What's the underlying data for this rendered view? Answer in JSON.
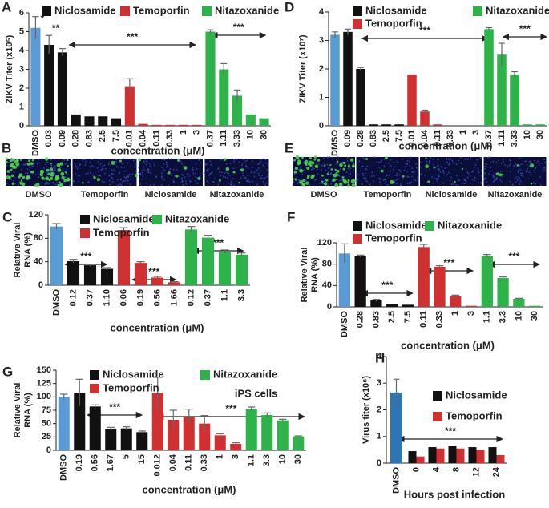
{
  "chart_data": [
    {
      "type": "bar",
      "letter": "A",
      "ylabel": "ZIKV Titer (x10⁵)",
      "xlabel": "concentration (μM)",
      "categories": [
        "DMSO",
        "0.03",
        "0.09",
        "0.28",
        "0.83",
        "2.5",
        "7.5",
        "0.01",
        "0.04",
        "0.11",
        "0.33",
        "1",
        "3",
        "0.37",
        "1.11",
        "3.33",
        "10",
        "30"
      ],
      "values": [
        5.2,
        4.3,
        3.9,
        0.6,
        0.5,
        0.5,
        0.4,
        2.1,
        0.1,
        0.05,
        0.05,
        0.05,
        0.05,
        5.0,
        3.0,
        1.6,
        0.6,
        0.4
      ],
      "errors": [
        0.6,
        0.5,
        0.2,
        null,
        null,
        null,
        null,
        0.4,
        null,
        null,
        null,
        null,
        null,
        0.1,
        0.3,
        0.3,
        null,
        null
      ],
      "bar_colors": [
        "#5b9bd5",
        "#111111",
        "#111111",
        "#111111",
        "#111111",
        "#111111",
        "#111111",
        "#d03030",
        "#d03030",
        "#d03030",
        "#d03030",
        "#d03030",
        "#d03030",
        "#2db34a",
        "#2db34a",
        "#2db34a",
        "#2db34a",
        "#2db34a"
      ],
      "legend": [
        {
          "name": "Niclosamide",
          "color": "#111111"
        },
        {
          "name": "Temoporfin",
          "color": "#d03030"
        },
        {
          "name": "Nitazoxanide",
          "color": "#2db34a"
        }
      ],
      "annotations": [
        "*",
        "**",
        "***",
        "***"
      ],
      "ylim": [
        0,
        6
      ],
      "yticks": [
        0,
        1,
        2,
        3,
        4,
        5,
        6
      ]
    },
    {
      "type": "bar",
      "letter": "D",
      "ylabel": "ZIKV Titer (x10⁷)",
      "xlabel": "concentration (μM)",
      "categories": [
        "DMSO",
        "0.09",
        "0.28",
        "0.83",
        "2.5",
        "7.5",
        "0.01",
        "0.04",
        "0.11",
        "0.33",
        "1",
        "3",
        "0.37",
        "1.11",
        "3.33",
        "10",
        "30"
      ],
      "values": [
        3.2,
        3.3,
        2.0,
        0.05,
        0.05,
        0.05,
        1.8,
        0.5,
        0.05,
        0,
        0,
        0,
        3.4,
        2.5,
        1.8,
        0.05,
        0.05
      ],
      "errors": [
        0.1,
        0.1,
        0.05,
        null,
        null,
        null,
        null,
        0.05,
        null,
        null,
        null,
        null,
        0.05,
        0.4,
        0.1,
        null,
        null
      ],
      "bar_colors": [
        "#5b9bd5",
        "#111111",
        "#111111",
        "#111111",
        "#111111",
        "#111111",
        "#d03030",
        "#d03030",
        "#d03030",
        "#d03030",
        "#d03030",
        "#d03030",
        "#2db34a",
        "#2db34a",
        "#2db34a",
        "#2db34a",
        "#2db34a"
      ],
      "legend": [
        {
          "name": "Niclosamide",
          "color": "#111111"
        },
        {
          "name": "Nitazoxanide",
          "color": "#2db34a"
        },
        {
          "name": "Temoporfin",
          "color": "#d03030"
        }
      ],
      "annotations": [
        "***",
        "***"
      ],
      "ylim": [
        0,
        4
      ],
      "yticks": [
        0,
        1,
        2,
        3,
        4
      ]
    },
    {
      "type": "bar",
      "letter": "C",
      "ylabel": [
        "Relative Viral",
        "RNA (%)"
      ],
      "xlabel": "concentration (μM)",
      "categories": [
        "DMSO",
        "0.12",
        "0.37",
        "1.10",
        "0.06",
        "0.19",
        "0.56",
        "1.66",
        "0.12",
        "0.37",
        "1.1",
        "3.3"
      ],
      "values": [
        100,
        41,
        34,
        28,
        94,
        38,
        13,
        5,
        95,
        81,
        57,
        52
      ],
      "errors": [
        5,
        3,
        2,
        2,
        4,
        2,
        2,
        1,
        5,
        4,
        3,
        3
      ],
      "bar_colors": [
        "#5b9bd5",
        "#111111",
        "#111111",
        "#111111",
        "#d03030",
        "#d03030",
        "#d03030",
        "#d03030",
        "#2db34a",
        "#2db34a",
        "#2db34a",
        "#2db34a"
      ],
      "legend": [
        {
          "name": "Niclosamide",
          "color": "#111111"
        },
        {
          "name": "Nitazoxanide",
          "color": "#2db34a"
        },
        {
          "name": "Temoporfin",
          "color": "#d03030"
        }
      ],
      "annotations": [
        "***",
        "***",
        "***"
      ],
      "ylim": [
        0,
        120
      ],
      "yticks": [
        0,
        40,
        80,
        120
      ]
    },
    {
      "type": "bar",
      "letter": "F",
      "ylabel": [
        "Relative Viral",
        "RNA (%)"
      ],
      "xlabel": "concentration (μM)",
      "categories": [
        "DMSO",
        "0.28",
        "0.83",
        "2.5",
        "7.5",
        "0.11",
        "0.33",
        "1",
        "3",
        "1.1",
        "3.3",
        "10",
        "30"
      ],
      "values": [
        100,
        95,
        12,
        5,
        4,
        112,
        75,
        20,
        2,
        95,
        54,
        15,
        2
      ],
      "errors": [
        18,
        2,
        2,
        null,
        null,
        5,
        2,
        2,
        null,
        3,
        2,
        1,
        null
      ],
      "bar_colors": [
        "#5b9bd5",
        "#111111",
        "#111111",
        "#111111",
        "#111111",
        "#d03030",
        "#d03030",
        "#d03030",
        "#d03030",
        "#2db34a",
        "#2db34a",
        "#2db34a",
        "#2db34a"
      ],
      "legend": [
        {
          "name": "Niclosamide",
          "color": "#111111"
        },
        {
          "name": "Nitazoxanide",
          "color": "#2db34a"
        },
        {
          "name": "Temoporfin",
          "color": "#d03030"
        }
      ],
      "annotations": [
        "***",
        "***",
        "***"
      ],
      "ylim": [
        0,
        120
      ],
      "yticks": [
        0,
        40,
        80,
        120
      ]
    },
    {
      "type": "bar",
      "letter": "G",
      "ylabel": [
        "Relative Viral",
        "RNA (%)"
      ],
      "xlabel": "concentration (μM)",
      "categories": [
        "DMSO",
        "0.19",
        "0.56",
        "1.67",
        "5",
        "15",
        "0.012",
        "0.04",
        "0.11",
        "0.33",
        "1",
        "3",
        "1.1",
        "3.3",
        "10",
        "30"
      ],
      "values": [
        100,
        108,
        82,
        40,
        41,
        34,
        107,
        57,
        62,
        50,
        28,
        12,
        77,
        66,
        56,
        26
      ],
      "errors": [
        5,
        25,
        3,
        3,
        3,
        2,
        30,
        18,
        15,
        15,
        3,
        2,
        4,
        4,
        2,
        1
      ],
      "bar_colors": [
        "#5b9bd5",
        "#111111",
        "#111111",
        "#111111",
        "#111111",
        "#111111",
        "#d03030",
        "#d03030",
        "#d03030",
        "#d03030",
        "#d03030",
        "#d03030",
        "#2db34a",
        "#2db34a",
        "#2db34a",
        "#2db34a"
      ],
      "legend": [
        {
          "name": "Niclosamide",
          "color": "#111111"
        },
        {
          "name": "Nitazoxanide",
          "color": "#2db34a"
        },
        {
          "name": "Temoporfin",
          "color": "#d03030"
        }
      ],
      "annotations": [
        "***",
        "***",
        "iPS cells"
      ],
      "ylim": [
        0,
        150
      ],
      "yticks": [
        0,
        25,
        50,
        75,
        100,
        125,
        150
      ]
    },
    {
      "type": "grouped_bar",
      "letter": "H",
      "ylabel": "Virus titer (x10⁸)",
      "xlabel": "Hours post infection",
      "categories": [
        "DMSO",
        "0",
        "4",
        "8",
        "12",
        "24"
      ],
      "baseline": {
        "value": 2.65,
        "error": 0.5,
        "color": "#2e75b6"
      },
      "series": [
        {
          "name": "Niclosamide",
          "color": "#111111",
          "values": [
            null,
            0.45,
            0.6,
            0.65,
            0.6,
            0.6
          ]
        },
        {
          "name": "Temoporfin",
          "color": "#d03030",
          "values": [
            null,
            0.25,
            0.55,
            0.55,
            0.5,
            0.3
          ]
        }
      ],
      "annotations": [
        "***"
      ],
      "ylim": [
        0,
        4
      ],
      "yticks": [
        0,
        1,
        2,
        3,
        4
      ]
    }
  ],
  "image_panels": [
    {
      "letter": "B",
      "labels": [
        "DMSO",
        "Temoporfin",
        "Niclosamide",
        "Nitazoxanide"
      ]
    },
    {
      "letter": "E",
      "labels": [
        "DMSO",
        "Temoporfin",
        "Niclosamide",
        "Nitazoxanide"
      ]
    }
  ]
}
